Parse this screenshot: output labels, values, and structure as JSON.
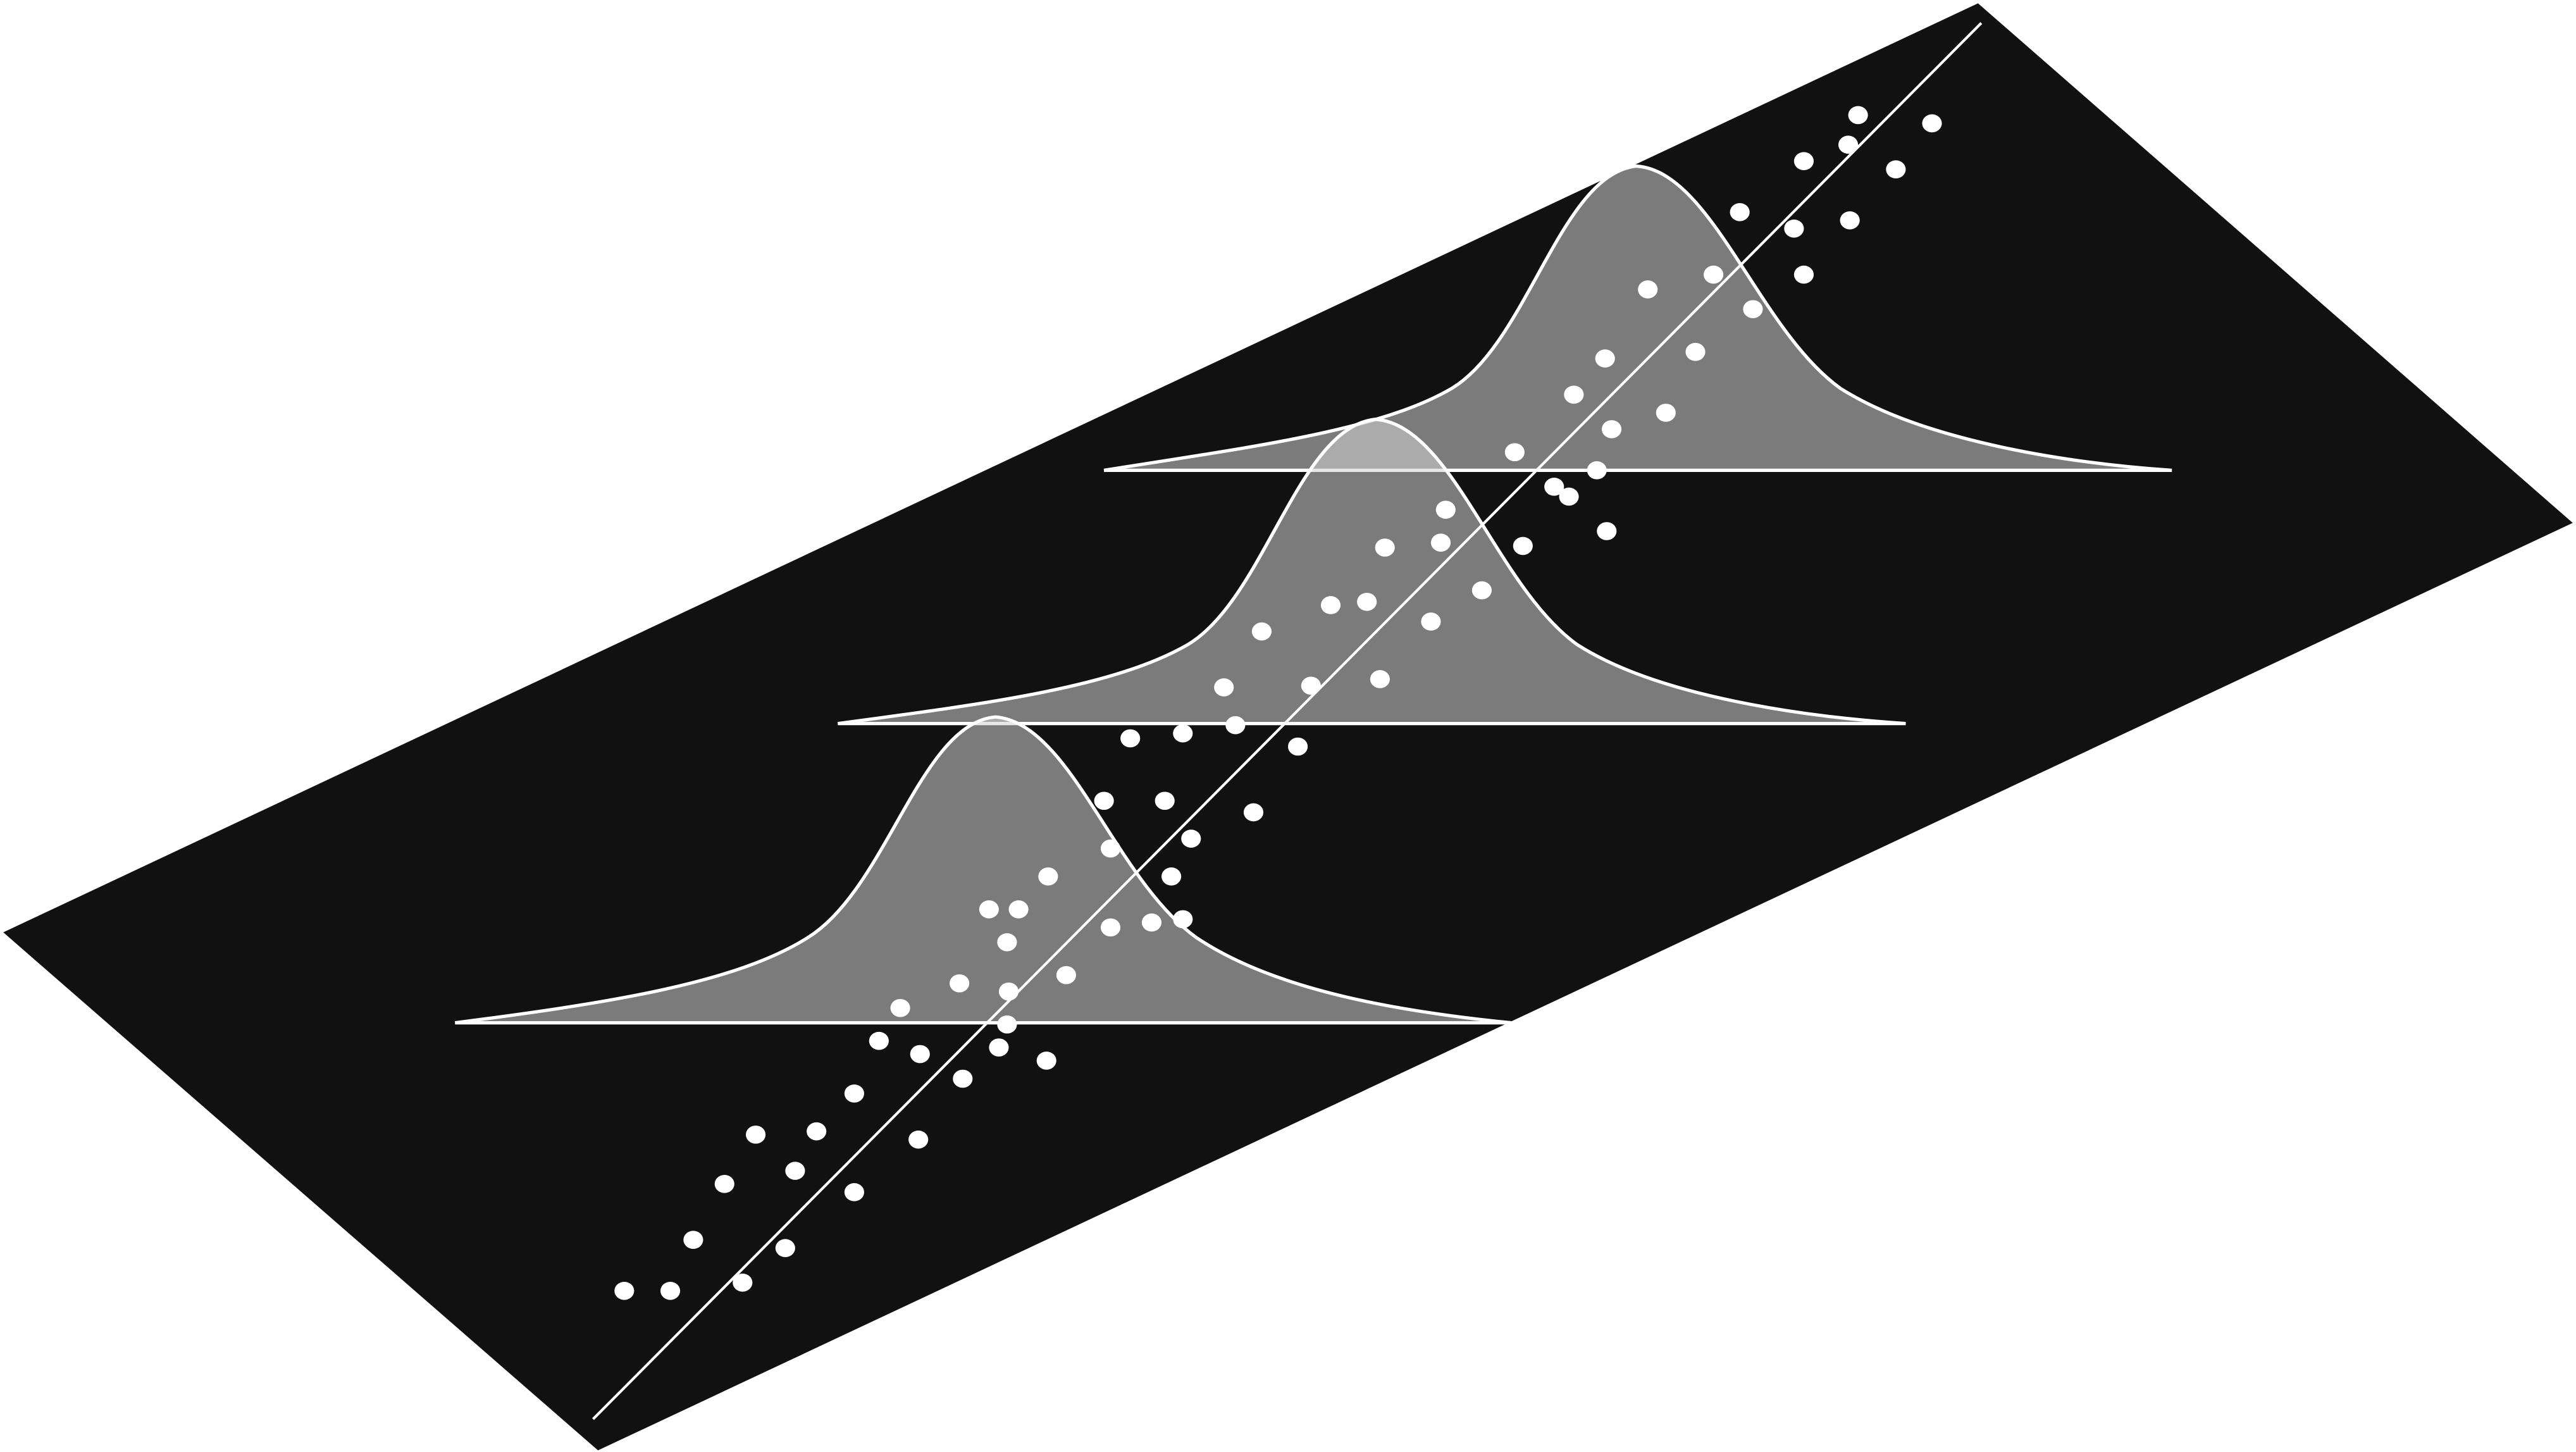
{
  "figure": {
    "plane_color": "#111111",
    "point_color": "#ffffff",
    "line_color": "#ffffff",
    "curve_stroke": "#ffffff",
    "curve_fill": "#d4d4d4"
  }
}
